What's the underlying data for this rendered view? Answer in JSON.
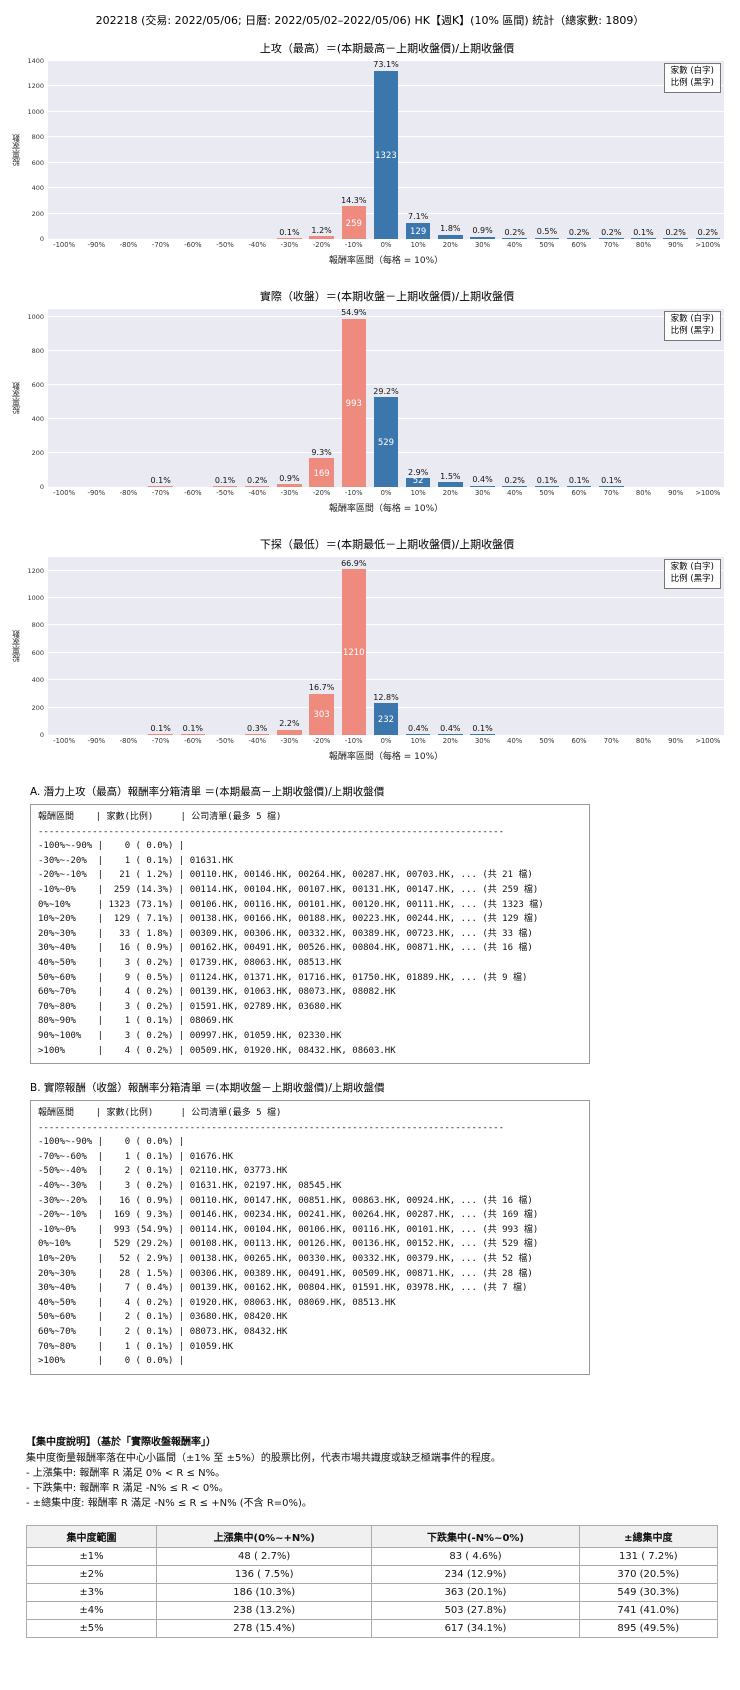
{
  "title": "202218 (交易: 2022/05/06; 日曆: 2022/05/02–2022/05/06) HK【週K】(10% 區間) 統計（總家數: 1809）",
  "colors": {
    "bar_negative": "#ef8a7e",
    "bar_positive": "#3b77ad",
    "plot_bg": "#eaeaf2"
  },
  "chart_data": [
    {
      "id": "attack-high",
      "type": "bar",
      "title": "上攻（最高）＝(本期最高－上期收盤價)/上期收盤價",
      "xlabel": "報酬率區間（每格 = 10%）",
      "ylabel": "股票家數",
      "legend": [
        "家數 (白字)",
        "比例 (黑字)"
      ],
      "ymax": 1400,
      "yticks": [
        0,
        200,
        400,
        600,
        800,
        1000,
        1200,
        1400
      ],
      "categories": [
        "-100%",
        "-90%",
        "-80%",
        "-70%",
        "-60%",
        "-50%",
        "-40%",
        "-30%",
        "-20%",
        "-10%",
        "0%",
        "10%",
        "20%",
        "30%",
        "40%",
        "50%",
        "60%",
        "70%",
        "80%",
        "90%",
        ">100%"
      ],
      "counts": [
        0,
        0,
        0,
        0,
        0,
        0,
        0,
        1,
        21,
        259,
        1323,
        129,
        33,
        16,
        3,
        9,
        4,
        3,
        1,
        3,
        4
      ],
      "pct_labels": [
        "",
        "",
        "",
        "",
        "",
        "",
        "",
        "0.1%",
        "1.2%",
        "14.3%",
        "73.1%",
        "7.1%",
        "1.8%",
        "0.9%",
        "0.2%",
        "0.5%",
        "0.2%",
        "0.2%",
        "0.1%",
        "0.2%",
        "0.2%"
      ],
      "count_labels": [
        "",
        "",
        "",
        "",
        "",
        "",
        "",
        "",
        "",
        "259",
        "1323",
        "129",
        "",
        "",
        "",
        "",
        "",
        "",
        "",
        "",
        ""
      ]
    },
    {
      "id": "actual-close",
      "type": "bar",
      "title": "實際（收盤）＝(本期收盤－上期收盤價)/上期收盤價",
      "xlabel": "報酬率區間（每格 = 10%）",
      "ylabel": "股票家數",
      "legend": [
        "家數 (白字)",
        "比例 (黑字)"
      ],
      "ymax": 1050,
      "yticks": [
        0,
        200,
        400,
        600,
        800,
        1000
      ],
      "categories": [
        "-100%",
        "-90%",
        "-80%",
        "-70%",
        "-60%",
        "-50%",
        "-40%",
        "-30%",
        "-20%",
        "-10%",
        "0%",
        "10%",
        "20%",
        "30%",
        "40%",
        "50%",
        "60%",
        "70%",
        "80%",
        "90%",
        ">100%"
      ],
      "counts": [
        0,
        0,
        0,
        1,
        0,
        2,
        3,
        16,
        169,
        993,
        529,
        52,
        28,
        7,
        4,
        2,
        2,
        1,
        0,
        0,
        0
      ],
      "pct_labels": [
        "",
        "",
        "",
        "0.1%",
        "",
        "0.1%",
        "0.2%",
        "0.9%",
        "9.3%",
        "54.9%",
        "29.2%",
        "2.9%",
        "1.5%",
        "0.4%",
        "0.2%",
        "0.1%",
        "0.1%",
        "0.1%",
        "",
        "",
        ""
      ],
      "count_labels": [
        "",
        "",
        "",
        "",
        "",
        "",
        "",
        "",
        "169",
        "993",
        "529",
        "52",
        "",
        "",
        "",
        "",
        "",
        "",
        "",
        "",
        ""
      ]
    },
    {
      "id": "probe-low",
      "type": "bar",
      "title": "下探（最低）＝(本期最低－上期收盤價)/上期收盤價",
      "xlabel": "報酬率區間（每格 = 10%）",
      "ylabel": "股票家數",
      "legend": [
        "家數 (白字)",
        "比例 (黑字)"
      ],
      "ymax": 1300,
      "yticks": [
        0,
        200,
        400,
        600,
        800,
        1000,
        1200
      ],
      "categories": [
        "-100%",
        "-90%",
        "-80%",
        "-70%",
        "-60%",
        "-50%",
        "-40%",
        "-30%",
        "-20%",
        "-10%",
        "0%",
        "10%",
        "20%",
        "30%",
        "40%",
        "50%",
        "60%",
        "70%",
        "80%",
        "90%",
        ">100%"
      ],
      "counts": [
        0,
        0,
        0,
        2,
        2,
        0,
        5,
        40,
        303,
        1210,
        232,
        7,
        7,
        2,
        0,
        0,
        0,
        0,
        0,
        0,
        0
      ],
      "pct_labels": [
        "",
        "",
        "",
        "0.1%",
        "0.1%",
        "",
        "0.3%",
        "2.2%",
        "16.7%",
        "66.9%",
        "12.8%",
        "0.4%",
        "0.4%",
        "0.1%",
        "",
        "",
        "",
        "",
        "",
        "",
        ""
      ],
      "count_labels": [
        "",
        "",
        "",
        "",
        "",
        "",
        "",
        "",
        "303",
        "1210",
        "232",
        "",
        "",
        "",
        "",
        "",
        "",
        "",
        "",
        "",
        ""
      ]
    }
  ],
  "sections": [
    {
      "id": "A",
      "title": "A. 潛力上攻（最高）報酬率分箱清單 ＝(本期最高－上期收盤價)/上期收盤價",
      "header": "報酬區間    | 家數(比例)     | 公司清單(最多 5 檔)",
      "divider": "--------------------------------------------------------------------------------------",
      "rows": [
        {
          "range": "-100%~-90%",
          "count": 0,
          "pct": "0.0%",
          "companies": ""
        },
        {
          "range": "-30%~-20%",
          "count": 1,
          "pct": "0.1%",
          "companies": "01631.HK"
        },
        {
          "range": "-20%~-10%",
          "count": 21,
          "pct": "1.2%",
          "companies": "00110.HK, 00146.HK, 00264.HK, 00287.HK, 00703.HK, ... (共 21 檔)"
        },
        {
          "range": "-10%~0%",
          "count": 259,
          "pct": "14.3%",
          "companies": "00114.HK, 00104.HK, 00107.HK, 00131.HK, 00147.HK, ... (共 259 檔)"
        },
        {
          "range": "0%~10%",
          "count": 1323,
          "pct": "73.1%",
          "companies": "00106.HK, 00116.HK, 00101.HK, 00120.HK, 00111.HK, ... (共 1323 檔)"
        },
        {
          "range": "10%~20%",
          "count": 129,
          "pct": "7.1%",
          "companies": "00138.HK, 00166.HK, 00188.HK, 00223.HK, 00244.HK, ... (共 129 檔)"
        },
        {
          "range": "20%~30%",
          "count": 33,
          "pct": "1.8%",
          "companies": "00309.HK, 00306.HK, 00332.HK, 00389.HK, 00723.HK, ... (共 33 檔)"
        },
        {
          "range": "30%~40%",
          "count": 16,
          "pct": "0.9%",
          "companies": "00162.HK, 00491.HK, 00526.HK, 00804.HK, 00871.HK, ... (共 16 檔)"
        },
        {
          "range": "40%~50%",
          "count": 3,
          "pct": "0.2%",
          "companies": "01739.HK, 08063.HK, 08513.HK"
        },
        {
          "range": "50%~60%",
          "count": 9,
          "pct": "0.5%",
          "companies": "01124.HK, 01371.HK, 01716.HK, 01750.HK, 01889.HK, ... (共 9 檔)"
        },
        {
          "range": "60%~70%",
          "count": 4,
          "pct": "0.2%",
          "companies": "00139.HK, 01063.HK, 08073.HK, 08082.HK"
        },
        {
          "range": "70%~80%",
          "count": 3,
          "pct": "0.2%",
          "companies": "01591.HK, 02789.HK, 03680.HK"
        },
        {
          "range": "80%~90%",
          "count": 1,
          "pct": "0.1%",
          "companies": "08069.HK"
        },
        {
          "range": "90%~100%",
          "count": 3,
          "pct": "0.2%",
          "companies": "00997.HK, 01059.HK, 02330.HK"
        },
        {
          "range": ">100%",
          "count": 4,
          "pct": "0.2%",
          "companies": "00509.HK, 01920.HK, 08432.HK, 08603.HK"
        }
      ]
    },
    {
      "id": "B",
      "title": "B. 實際報酬（收盤）報酬率分箱清單 ＝(本期收盤－上期收盤價)/上期收盤價",
      "header": "報酬區間    | 家數(比例)     | 公司清單(最多 5 檔)",
      "divider": "--------------------------------------------------------------------------------------",
      "rows": [
        {
          "range": "-100%~-90%",
          "count": 0,
          "pct": "0.0%",
          "companies": ""
        },
        {
          "range": "-70%~-60%",
          "count": 1,
          "pct": "0.1%",
          "companies": "01676.HK"
        },
        {
          "range": "-50%~-40%",
          "count": 2,
          "pct": "0.1%",
          "companies": "02110.HK, 03773.HK"
        },
        {
          "range": "-40%~-30%",
          "count": 3,
          "pct": "0.2%",
          "companies": "01631.HK, 02197.HK, 08545.HK"
        },
        {
          "range": "-30%~-20%",
          "count": 16,
          "pct": "0.9%",
          "companies": "00110.HK, 00147.HK, 00851.HK, 00863.HK, 00924.HK, ... (共 16 檔)"
        },
        {
          "range": "-20%~-10%",
          "count": 169,
          "pct": "9.3%",
          "companies": "00146.HK, 00234.HK, 00241.HK, 00264.HK, 00287.HK, ... (共 169 檔)"
        },
        {
          "range": "-10%~0%",
          "count": 993,
          "pct": "54.9%",
          "companies": "00114.HK, 00104.HK, 00106.HK, 00116.HK, 00101.HK, ... (共 993 檔)"
        },
        {
          "range": "0%~10%",
          "count": 529,
          "pct": "29.2%",
          "companies": "00108.HK, 00113.HK, 00126.HK, 00136.HK, 00152.HK, ... (共 529 檔)"
        },
        {
          "range": "10%~20%",
          "count": 52,
          "pct": "2.9%",
          "companies": "00138.HK, 00265.HK, 00330.HK, 00332.HK, 00379.HK, ... (共 52 檔)"
        },
        {
          "range": "20%~30%",
          "count": 28,
          "pct": "1.5%",
          "companies": "00306.HK, 00389.HK, 00491.HK, 00509.HK, 00871.HK, ... (共 28 檔)"
        },
        {
          "range": "30%~40%",
          "count": 7,
          "pct": "0.4%",
          "companies": "00139.HK, 00162.HK, 00804.HK, 01591.HK, 03978.HK, ... (共 7 檔)"
        },
        {
          "range": "40%~50%",
          "count": 4,
          "pct": "0.2%",
          "companies": "01920.HK, 08063.HK, 08069.HK, 08513.HK"
        },
        {
          "range": "50%~60%",
          "count": 2,
          "pct": "0.1%",
          "companies": "03680.HK, 08420.HK"
        },
        {
          "range": "60%~70%",
          "count": 2,
          "pct": "0.1%",
          "companies": "08073.HK, 08432.HK"
        },
        {
          "range": "70%~80%",
          "count": 1,
          "pct": "0.1%",
          "companies": "01059.HK"
        },
        {
          "range": ">100%",
          "count": 0,
          "pct": "0.0%",
          "companies": ""
        }
      ]
    }
  ],
  "concentration": {
    "heading": "【集中度說明】（基於「實際收盤報酬率」）",
    "lines": [
      "集中度衡量報酬率落在中心小區間（±1% 至 ±5%）的股票比例，代表市場共識度或缺乏極端事件的程度。",
      " - 上漲集中: 報酬率 R 滿足 0% < R ≤ N%。",
      " - 下跌集中: 報酬率 R 滿足 -N% ≤ R < 0%。",
      " - ±總集中度: 報酬率 R 滿足 -N% ≤ R ≤ +N% (不含 R=0%)。"
    ],
    "table": {
      "headers": [
        "集中度範圍",
        "上漲集中(0%~+N%)",
        "下跌集中(-N%~0%)",
        "±總集中度"
      ],
      "rows": [
        [
          "±1%",
          "48 ( 2.7%)",
          "83 ( 4.6%)",
          "131 ( 7.2%)"
        ],
        [
          "±2%",
          "136 ( 7.5%)",
          "234 (12.9%)",
          "370 (20.5%)"
        ],
        [
          "±3%",
          "186 (10.3%)",
          "363 (20.1%)",
          "549 (30.3%)"
        ],
        [
          "±4%",
          "238 (13.2%)",
          "503 (27.8%)",
          "741 (41.0%)"
        ],
        [
          "±5%",
          "278 (15.4%)",
          "617 (34.1%)",
          "895 (49.5%)"
        ]
      ]
    }
  }
}
